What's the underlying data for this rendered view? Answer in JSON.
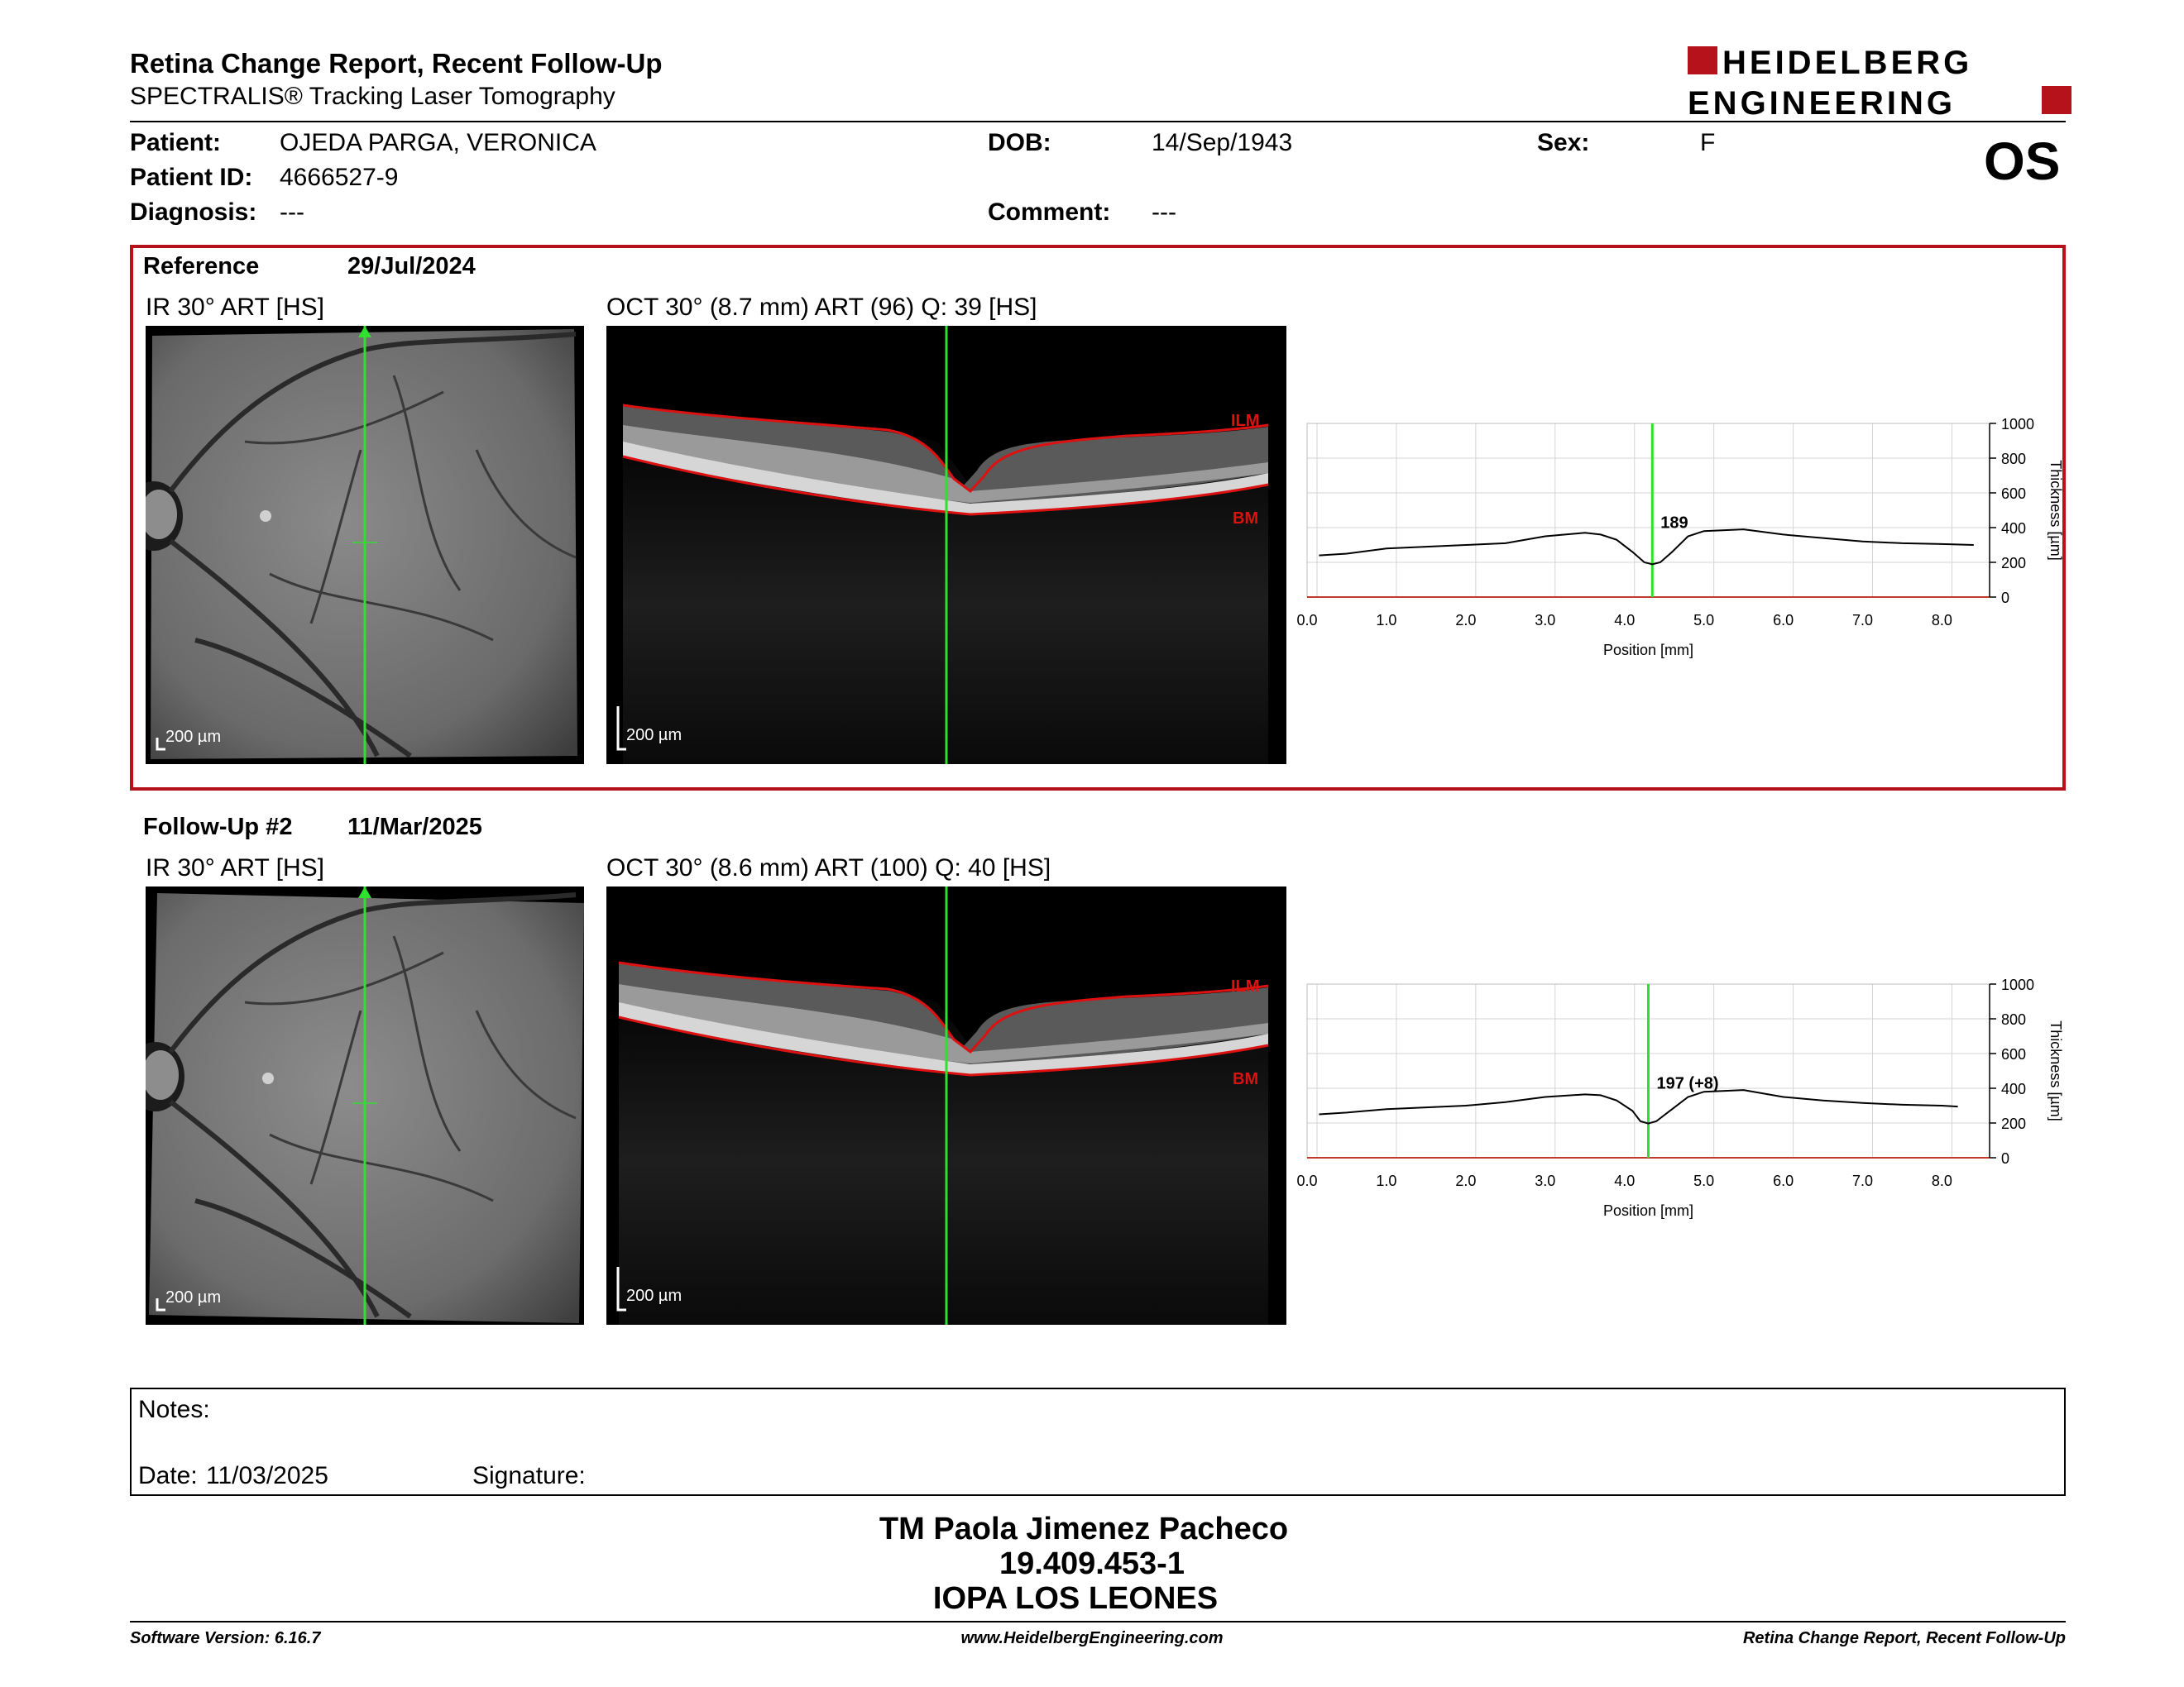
{
  "header": {
    "title": "Retina Change Report, Recent Follow-Up",
    "subtitle": "SPECTRALIS® Tracking Laser Tomography",
    "logo_line1": "HEIDELBERG",
    "logo_line2": "ENGINEERING",
    "brand_color": "#b5121b"
  },
  "patient": {
    "patient_label": "Patient:",
    "patient_name": "OJEDA PARGA, VERONICA",
    "id_label": "Patient ID:",
    "patient_id": "4666527-9",
    "diagnosis_label": "Diagnosis:",
    "diagnosis": "---",
    "dob_label": "DOB:",
    "dob": "14/Sep/1943",
    "comment_label": "Comment:",
    "comment": "---",
    "sex_label": "Sex:",
    "sex": "F",
    "eye": "OS"
  },
  "reference": {
    "label": "Reference",
    "date": "29/Jul/2024",
    "ir_caption": "IR 30° ART [HS]",
    "oct_caption": "OCT 30° (8.7 mm) ART (96) Q: 39 [HS]",
    "scale": "200 µm",
    "ilm": "ILM",
    "bm": "BM"
  },
  "followup": {
    "label": "Follow-Up #2",
    "date": "11/Mar/2025",
    "ir_caption": "IR 30° ART [HS]",
    "oct_caption": "OCT 30° (8.6 mm) ART (100) Q: 40 [HS]",
    "scale": "200 µm",
    "ilm": "ILM",
    "bm": "BM"
  },
  "chart_data": [
    {
      "type": "line",
      "xlabel": "Position [mm]",
      "ylabel": "Thickness [µm]",
      "xlim": [
        0,
        8.6
      ],
      "ylim": [
        0,
        1000
      ],
      "xticks": [
        "0.0",
        "1.0",
        "2.0",
        "3.0",
        "4.0",
        "5.0",
        "6.0",
        "7.0",
        "8.0"
      ],
      "yticks": [
        "0",
        "200",
        "400",
        "600",
        "800",
        "1000"
      ],
      "marker_x": 4.35,
      "annotation": "189",
      "x": [
        0.15,
        0.5,
        1.0,
        1.5,
        2.0,
        2.5,
        3.0,
        3.5,
        3.7,
        3.9,
        4.1,
        4.25,
        4.35,
        4.45,
        4.6,
        4.8,
        5.0,
        5.5,
        6.0,
        6.5,
        7.0,
        7.5,
        8.0,
        8.4
      ],
      "y": [
        240,
        250,
        280,
        290,
        300,
        310,
        350,
        370,
        360,
        330,
        260,
        200,
        189,
        200,
        260,
        350,
        380,
        390,
        360,
        340,
        320,
        310,
        305,
        300
      ],
      "grid": true
    },
    {
      "type": "line",
      "xlabel": "Position [mm]",
      "ylabel": "Thickness [µm]",
      "xlim": [
        0,
        8.6
      ],
      "ylim": [
        0,
        1000
      ],
      "xticks": [
        "0.0",
        "1.0",
        "2.0",
        "3.0",
        "4.0",
        "5.0",
        "6.0",
        "7.0",
        "8.0"
      ],
      "yticks": [
        "0",
        "200",
        "400",
        "600",
        "800",
        "1000"
      ],
      "marker_x": 4.3,
      "annotation": "197 (+8)",
      "x": [
        0.15,
        0.5,
        1.0,
        1.5,
        2.0,
        2.5,
        3.0,
        3.5,
        3.7,
        3.9,
        4.1,
        4.2,
        4.3,
        4.4,
        4.6,
        4.8,
        5.0,
        5.5,
        6.0,
        6.5,
        7.0,
        7.5,
        8.0,
        8.2
      ],
      "y": [
        250,
        260,
        280,
        290,
        300,
        320,
        350,
        365,
        360,
        330,
        270,
        210,
        197,
        210,
        280,
        350,
        380,
        390,
        350,
        330,
        315,
        305,
        300,
        295
      ],
      "grid": true
    }
  ],
  "notes": {
    "notes_label": "Notes:",
    "date_label": "Date:",
    "date": "11/03/2025",
    "signature_label": "Signature:"
  },
  "signer": {
    "name": "TM Paola Jimenez Pacheco",
    "rut": "19.409.453-1",
    "institution": "IOPA LOS LEONES"
  },
  "footer": {
    "software": "Software Version: 6.16.7",
    "website": "www.HeidelbergEngineering.com",
    "report": "Retina Change Report, Recent Follow-Up"
  }
}
